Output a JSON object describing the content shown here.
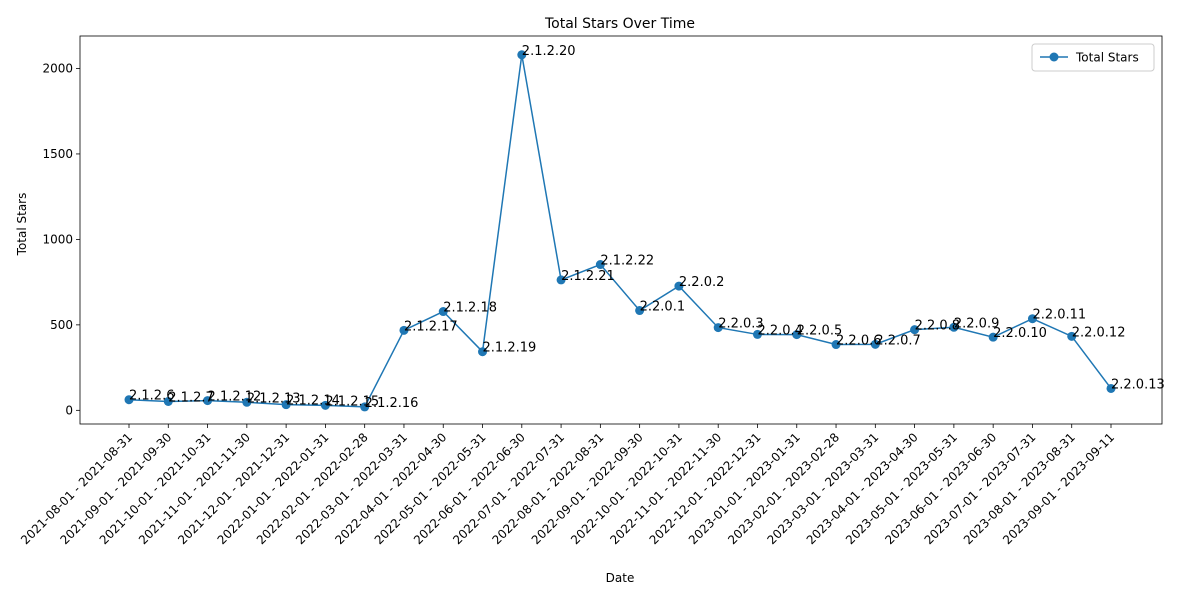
{
  "chart_data": {
    "type": "line",
    "title": "Total Stars Over Time",
    "xlabel": "Date",
    "ylabel": "Total Stars",
    "ylim": [
      -80,
      2190
    ],
    "yticks": [
      0,
      500,
      1000,
      1500,
      2000
    ],
    "grid": false,
    "legend_position": "top-right",
    "series_color": "#1f77b4",
    "categories": [
      "2021-08-01 - 2021-08-31",
      "2021-09-01 - 2021-09-30",
      "2021-10-01 - 2021-10-31",
      "2021-11-01 - 2021-11-30",
      "2021-12-01 - 2021-12-31",
      "2022-01-01 - 2022-01-31",
      "2022-02-01 - 2022-02-28",
      "2022-03-01 - 2022-03-31",
      "2022-04-01 - 2022-04-30",
      "2022-05-01 - 2022-05-31",
      "2022-06-01 - 2022-06-30",
      "2022-07-01 - 2022-07-31",
      "2022-08-01 - 2022-08-31",
      "2022-09-01 - 2022-09-30",
      "2022-10-01 - 2022-10-31",
      "2022-11-01 - 2022-11-30",
      "2022-12-01 - 2022-12-31",
      "2023-01-01 - 2023-01-31",
      "2023-02-01 - 2023-02-28",
      "2023-03-01 - 2023-03-31",
      "2023-04-01 - 2023-04-30",
      "2023-05-01 - 2023-05-31",
      "2023-06-01 - 2023-06-30",
      "2023-07-01 - 2023-07-31",
      "2023-08-01 - 2023-08-31",
      "2023-09-01 - 2023-09-11"
    ],
    "series": [
      {
        "name": "Total Stars",
        "values": [
          62,
          52,
          57,
          47,
          33,
          29,
          20,
          468,
          578,
          343,
          2080,
          763,
          853,
          584,
          727,
          484,
          444,
          443,
          385,
          386,
          472,
          486,
          428,
          536,
          433,
          128
        ],
        "labels": [
          "2.1.2.6",
          "2.1.2.7",
          "2.1.2.12",
          "2.1.2.13",
          "2.1.2.14",
          "2.1.2.15",
          "2.1.2.16",
          "2.1.2.17",
          "2.1.2.18",
          "2.1.2.19",
          "2.1.2.20",
          "2.1.2.21",
          "2.1.2.22",
          "2.2.0.1",
          "2.2.0.2",
          "2.2.0.3",
          "2.2.0.4",
          "2.2.0.5",
          "2.2.0.6",
          "2.2.0.7",
          "2.2.0.8",
          "2.2.0.9",
          "2.2.0.10",
          "2.2.0.11",
          "2.2.0.12",
          "2.2.0.13"
        ]
      }
    ]
  }
}
